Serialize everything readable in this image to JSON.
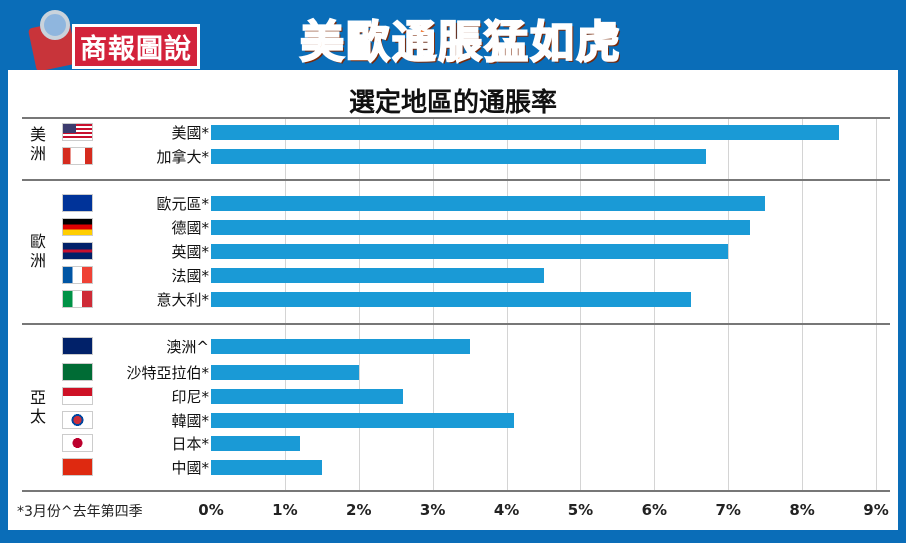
{
  "header": {
    "logo_text": "商報圖說",
    "headline": "美歐通脹猛如虎"
  },
  "chart_data": {
    "type": "bar",
    "orientation": "horizontal",
    "title": "選定地區的通脹率",
    "footnote": "*3月份^去年第四季",
    "xlim": [
      0,
      9
    ],
    "x_ticks": [
      "0%",
      "1%",
      "2%",
      "3%",
      "4%",
      "5%",
      "6%",
      "7%",
      "8%",
      "9%"
    ],
    "grid": true,
    "bar_color": "#1a9ad6",
    "groups": [
      {
        "region": "美洲",
        "items": [
          {
            "label": "美國*",
            "value": 8.5,
            "flag": "us"
          },
          {
            "label": "加拿大*",
            "value": 6.7,
            "flag": "ca"
          }
        ]
      },
      {
        "region": "歐洲",
        "items": [
          {
            "label": "歐元區*",
            "value": 7.5,
            "flag": "eu"
          },
          {
            "label": "德國*",
            "value": 7.3,
            "flag": "de"
          },
          {
            "label": "英國*",
            "value": 7.0,
            "flag": "gb"
          },
          {
            "label": "法國*",
            "value": 4.5,
            "flag": "fr"
          },
          {
            "label": "意大利*",
            "value": 6.5,
            "flag": "it"
          }
        ]
      },
      {
        "region": "亞太",
        "items": [
          {
            "label": "澳洲^",
            "value": 3.5,
            "flag": "au"
          },
          {
            "label": "沙特亞拉伯*",
            "value": 2.0,
            "flag": "sa"
          },
          {
            "label": "印尼*",
            "value": 2.6,
            "flag": "id"
          },
          {
            "label": "韓國*",
            "value": 4.1,
            "flag": "kr"
          },
          {
            "label": "日本*",
            "value": 1.2,
            "flag": "jp"
          },
          {
            "label": "中國*",
            "value": 1.5,
            "flag": "cn"
          }
        ]
      }
    ]
  }
}
